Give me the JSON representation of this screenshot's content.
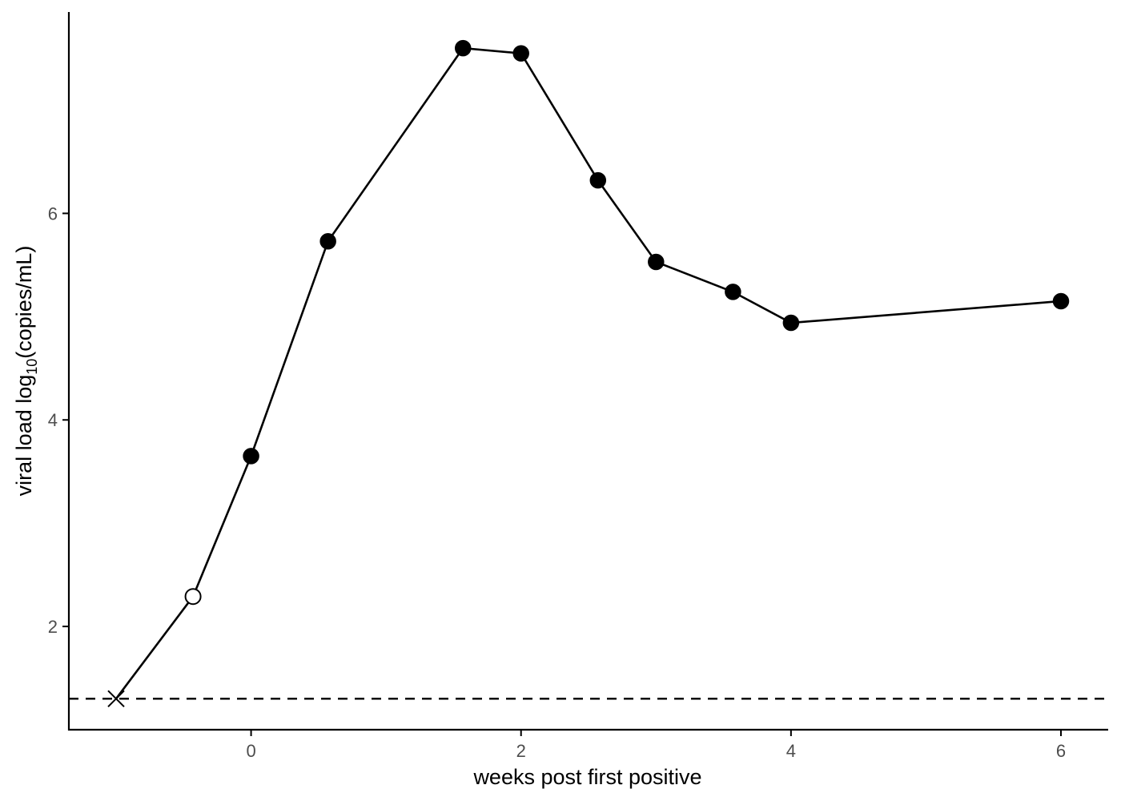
{
  "chart_data": {
    "type": "line",
    "xlabel": "weeks post first positive",
    "ylabel_main": "viral load log",
    "ylabel_sub": "10",
    "ylabel_tail": "(copies/mL)",
    "xlim": [
      -1.35,
      6.35
    ],
    "ylim": [
      1.0,
      7.95
    ],
    "x_ticks": [
      0,
      2,
      4,
      6
    ],
    "y_ticks": [
      2,
      4,
      6
    ],
    "detection_limit": 1.3,
    "points": [
      {
        "x": -1.0,
        "y": 1.3,
        "marker": "cross"
      },
      {
        "x": -0.43,
        "y": 2.29,
        "marker": "open"
      },
      {
        "x": 0.0,
        "y": 3.65,
        "marker": "filled"
      },
      {
        "x": 0.57,
        "y": 5.73,
        "marker": "filled"
      },
      {
        "x": 1.57,
        "y": 7.6,
        "marker": "filled"
      },
      {
        "x": 2.0,
        "y": 7.55,
        "marker": "filled"
      },
      {
        "x": 2.57,
        "y": 6.32,
        "marker": "filled"
      },
      {
        "x": 3.0,
        "y": 5.53,
        "marker": "filled"
      },
      {
        "x": 3.57,
        "y": 5.24,
        "marker": "filled"
      },
      {
        "x": 4.0,
        "y": 4.94,
        "marker": "filled"
      },
      {
        "x": 6.0,
        "y": 5.15,
        "marker": "filled"
      }
    ]
  }
}
